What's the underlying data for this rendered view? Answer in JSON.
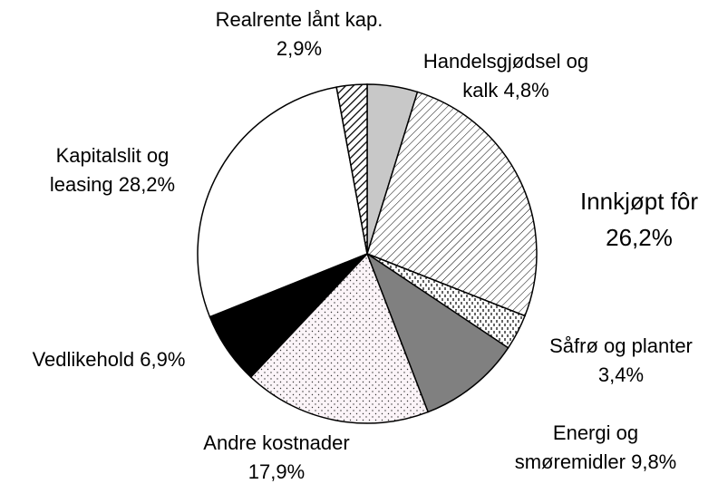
{
  "chart_data": {
    "type": "pie",
    "categories": [
      "Handelsgjødsel og kalk",
      "Innkjøpt fôr",
      "Såfrø og planter",
      "Energi og smøremidler",
      "Andre kostnader",
      "Vedlikehold",
      "Kapitalslit og leasing",
      "Realrente lånt kap."
    ],
    "values": [
      4.8,
      26.2,
      3.4,
      9.8,
      17.9,
      6.9,
      28.2,
      2.9
    ],
    "value_labels": [
      "4,8%",
      "26,2%",
      "3,4%",
      "9,8%",
      "17,9%",
      "6,9%",
      "28,2%",
      "2,9%"
    ]
  }
}
